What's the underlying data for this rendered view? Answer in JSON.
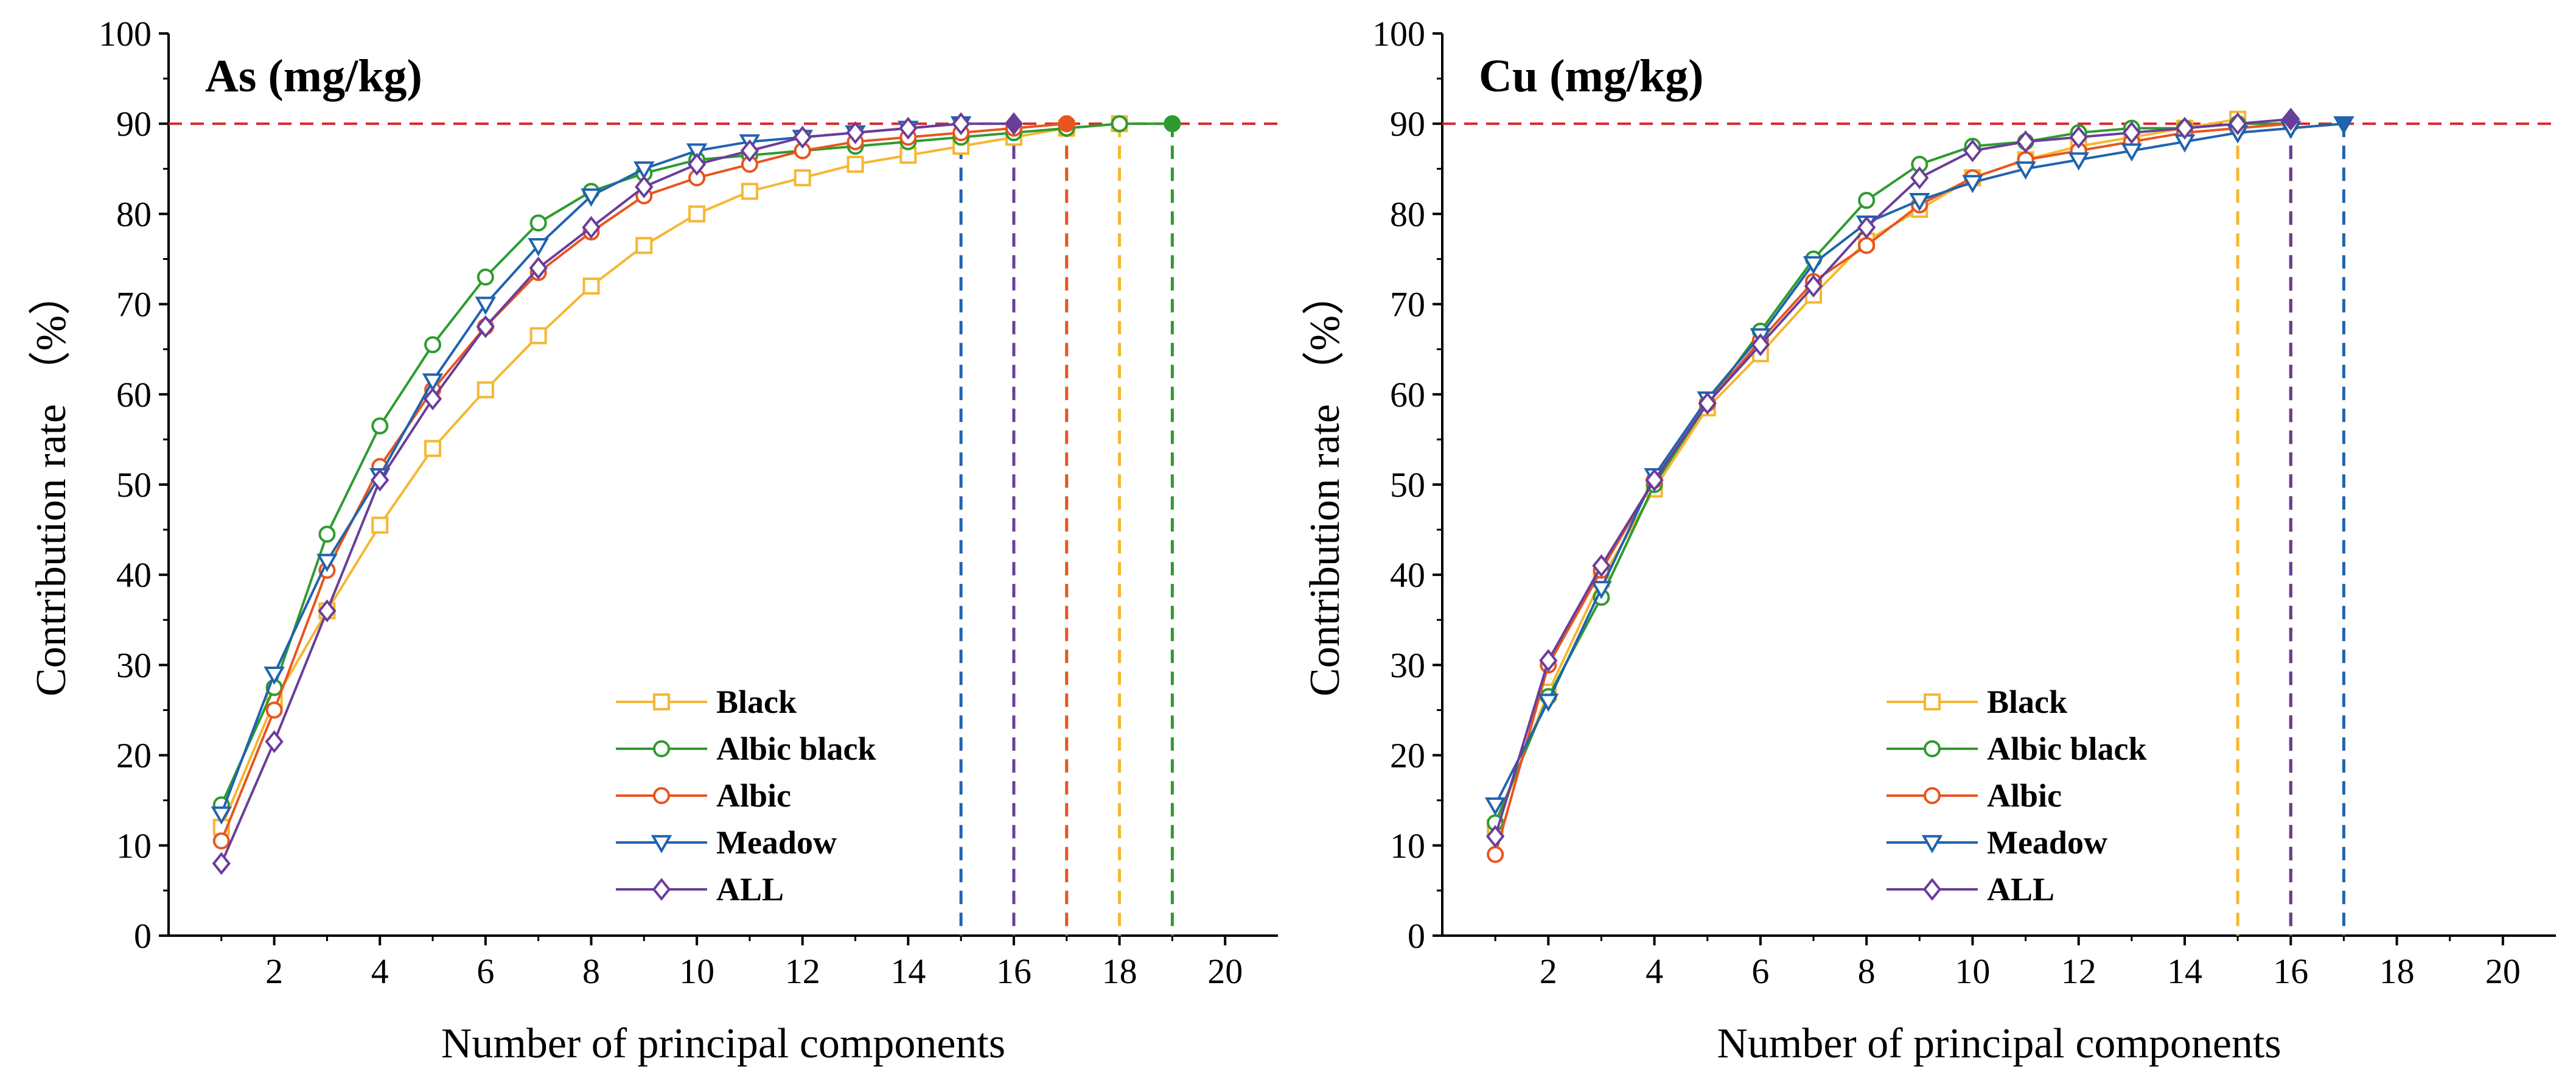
{
  "chart_data": [
    {
      "type": "line",
      "title": "As (mg/kg)",
      "xlabel": "Number of principal components",
      "ylabel": "Contribution rate （%）",
      "xlim": [
        0,
        21
      ],
      "ylim": [
        0,
        100
      ],
      "xticks": [
        2,
        4,
        6,
        8,
        10,
        12,
        14,
        16,
        18,
        20
      ],
      "yticks": [
        0,
        10,
        20,
        30,
        40,
        50,
        60,
        70,
        80,
        90,
        100
      ],
      "threshold": 90,
      "legend_position": "bottom-center",
      "series": [
        {
          "name": "Black",
          "color": "#F5B731",
          "marker": "square",
          "x": [
            1,
            2,
            3,
            4,
            5,
            6,
            7,
            8,
            9,
            10,
            11,
            12,
            13,
            14,
            15,
            16,
            17,
            18
          ],
          "values": [
            12,
            26,
            36,
            45.5,
            54,
            60.5,
            66.5,
            72,
            76.5,
            80,
            82.5,
            84,
            85.5,
            86.5,
            87.5,
            88.5,
            89.5,
            90
          ],
          "cutoff": 18
        },
        {
          "name": "Albic black",
          "color": "#2E9B2F",
          "marker": "circle",
          "x": [
            1,
            2,
            3,
            4,
            5,
            6,
            7,
            8,
            9,
            10,
            11,
            12,
            13,
            14,
            15,
            16,
            17,
            18,
            19
          ],
          "values": [
            14.5,
            27.5,
            44.5,
            56.5,
            65.5,
            73,
            79,
            82.5,
            84.5,
            86,
            86.5,
            87,
            87.5,
            88,
            88.5,
            89,
            89.5,
            90,
            90
          ],
          "cutoff": 19
        },
        {
          "name": "Albic",
          "color": "#E8551E",
          "marker": "circle",
          "x": [
            1,
            2,
            3,
            4,
            5,
            6,
            7,
            8,
            9,
            10,
            11,
            12,
            13,
            14,
            15,
            16,
            17
          ],
          "values": [
            10.5,
            25,
            40.5,
            52,
            60.5,
            67.5,
            73.5,
            78,
            82,
            84,
            85.5,
            87,
            88,
            88.5,
            89,
            89.5,
            90
          ],
          "cutoff": 17
        },
        {
          "name": "Meadow",
          "color": "#2063AE",
          "marker": "triangle-down",
          "x": [
            1,
            2,
            3,
            4,
            5,
            6,
            7,
            8,
            9,
            10,
            11,
            12,
            13,
            14,
            15
          ],
          "values": [
            13.5,
            29,
            41.5,
            51,
            61.5,
            70,
            76.5,
            82,
            85,
            87,
            88,
            88.5,
            89,
            89.5,
            90
          ],
          "cutoff": 15
        },
        {
          "name": "ALL",
          "color": "#6A3D9A",
          "marker": "diamond",
          "x": [
            1,
            2,
            3,
            4,
            5,
            6,
            7,
            8,
            9,
            10,
            11,
            12,
            13,
            14,
            15,
            16
          ],
          "values": [
            8,
            21.5,
            36,
            50.5,
            59.5,
            67.5,
            74,
            78.5,
            83,
            85.5,
            87,
            88.5,
            89,
            89.5,
            90,
            90
          ],
          "cutoff": 16
        }
      ]
    },
    {
      "type": "line",
      "title": "Cu (mg/kg)",
      "xlabel": "Number of principal components",
      "ylabel": "Contribution rate （%）",
      "xlim": [
        0,
        21
      ],
      "ylim": [
        0,
        100
      ],
      "xticks": [
        2,
        4,
        6,
        8,
        10,
        12,
        14,
        16,
        18,
        20
      ],
      "yticks": [
        0,
        10,
        20,
        30,
        40,
        50,
        60,
        70,
        80,
        90,
        100
      ],
      "threshold": 90,
      "legend_position": "bottom-center",
      "series": [
        {
          "name": "Black",
          "color": "#F5B731",
          "marker": "square",
          "x": [
            1,
            2,
            3,
            4,
            5,
            6,
            7,
            8,
            9,
            10,
            11,
            12,
            13,
            14,
            15
          ],
          "values": [
            12,
            27,
            39.5,
            49.5,
            58.5,
            64.5,
            71,
            77,
            80.5,
            84,
            86,
            87.5,
            88.5,
            89.5,
            90.5
          ],
          "cutoff": 15
        },
        {
          "name": "Albic black",
          "color": "#2E9B2F",
          "marker": "circle",
          "x": [
            1,
            2,
            3,
            4,
            5,
            6,
            7,
            8,
            9,
            10,
            11,
            12,
            13,
            14,
            15,
            16
          ],
          "values": [
            12.5,
            26.5,
            37.5,
            50,
            59,
            67,
            75,
            81.5,
            85.5,
            87.5,
            88,
            89,
            89.5,
            89.5,
            90,
            90
          ],
          "cutoff": 16
        },
        {
          "name": "Albic",
          "color": "#E8551E",
          "marker": "circle",
          "x": [
            1,
            2,
            3,
            4,
            5,
            6,
            7,
            8,
            9,
            10,
            11,
            12,
            13,
            14,
            15,
            16
          ],
          "values": [
            9,
            30,
            40.5,
            50.5,
            59,
            66,
            72.5,
            76.5,
            81,
            84,
            86,
            87,
            88,
            89,
            89.5,
            90
          ],
          "cutoff": 16
        },
        {
          "name": "Meadow",
          "color": "#2063AE",
          "marker": "triangle-down",
          "x": [
            1,
            2,
            3,
            4,
            5,
            6,
            7,
            8,
            9,
            10,
            11,
            12,
            13,
            14,
            15,
            16,
            17
          ],
          "values": [
            14.5,
            26,
            38.5,
            51,
            59.5,
            66.5,
            74.5,
            79,
            81.5,
            83.5,
            85,
            86,
            87,
            88,
            89,
            89.5,
            90
          ],
          "cutoff": 17
        },
        {
          "name": "ALL",
          "color": "#6A3D9A",
          "marker": "diamond",
          "x": [
            1,
            2,
            3,
            4,
            5,
            6,
            7,
            8,
            9,
            10,
            11,
            12,
            13,
            14,
            15,
            16
          ],
          "values": [
            11,
            30.5,
            41,
            50.5,
            59,
            65.5,
            72,
            78.5,
            84,
            87,
            88,
            88.5,
            89,
            89.5,
            90,
            90.5
          ],
          "cutoff": 16
        }
      ]
    }
  ],
  "colors": {
    "threshold_line": "#D7262B",
    "axis": "#000000"
  }
}
